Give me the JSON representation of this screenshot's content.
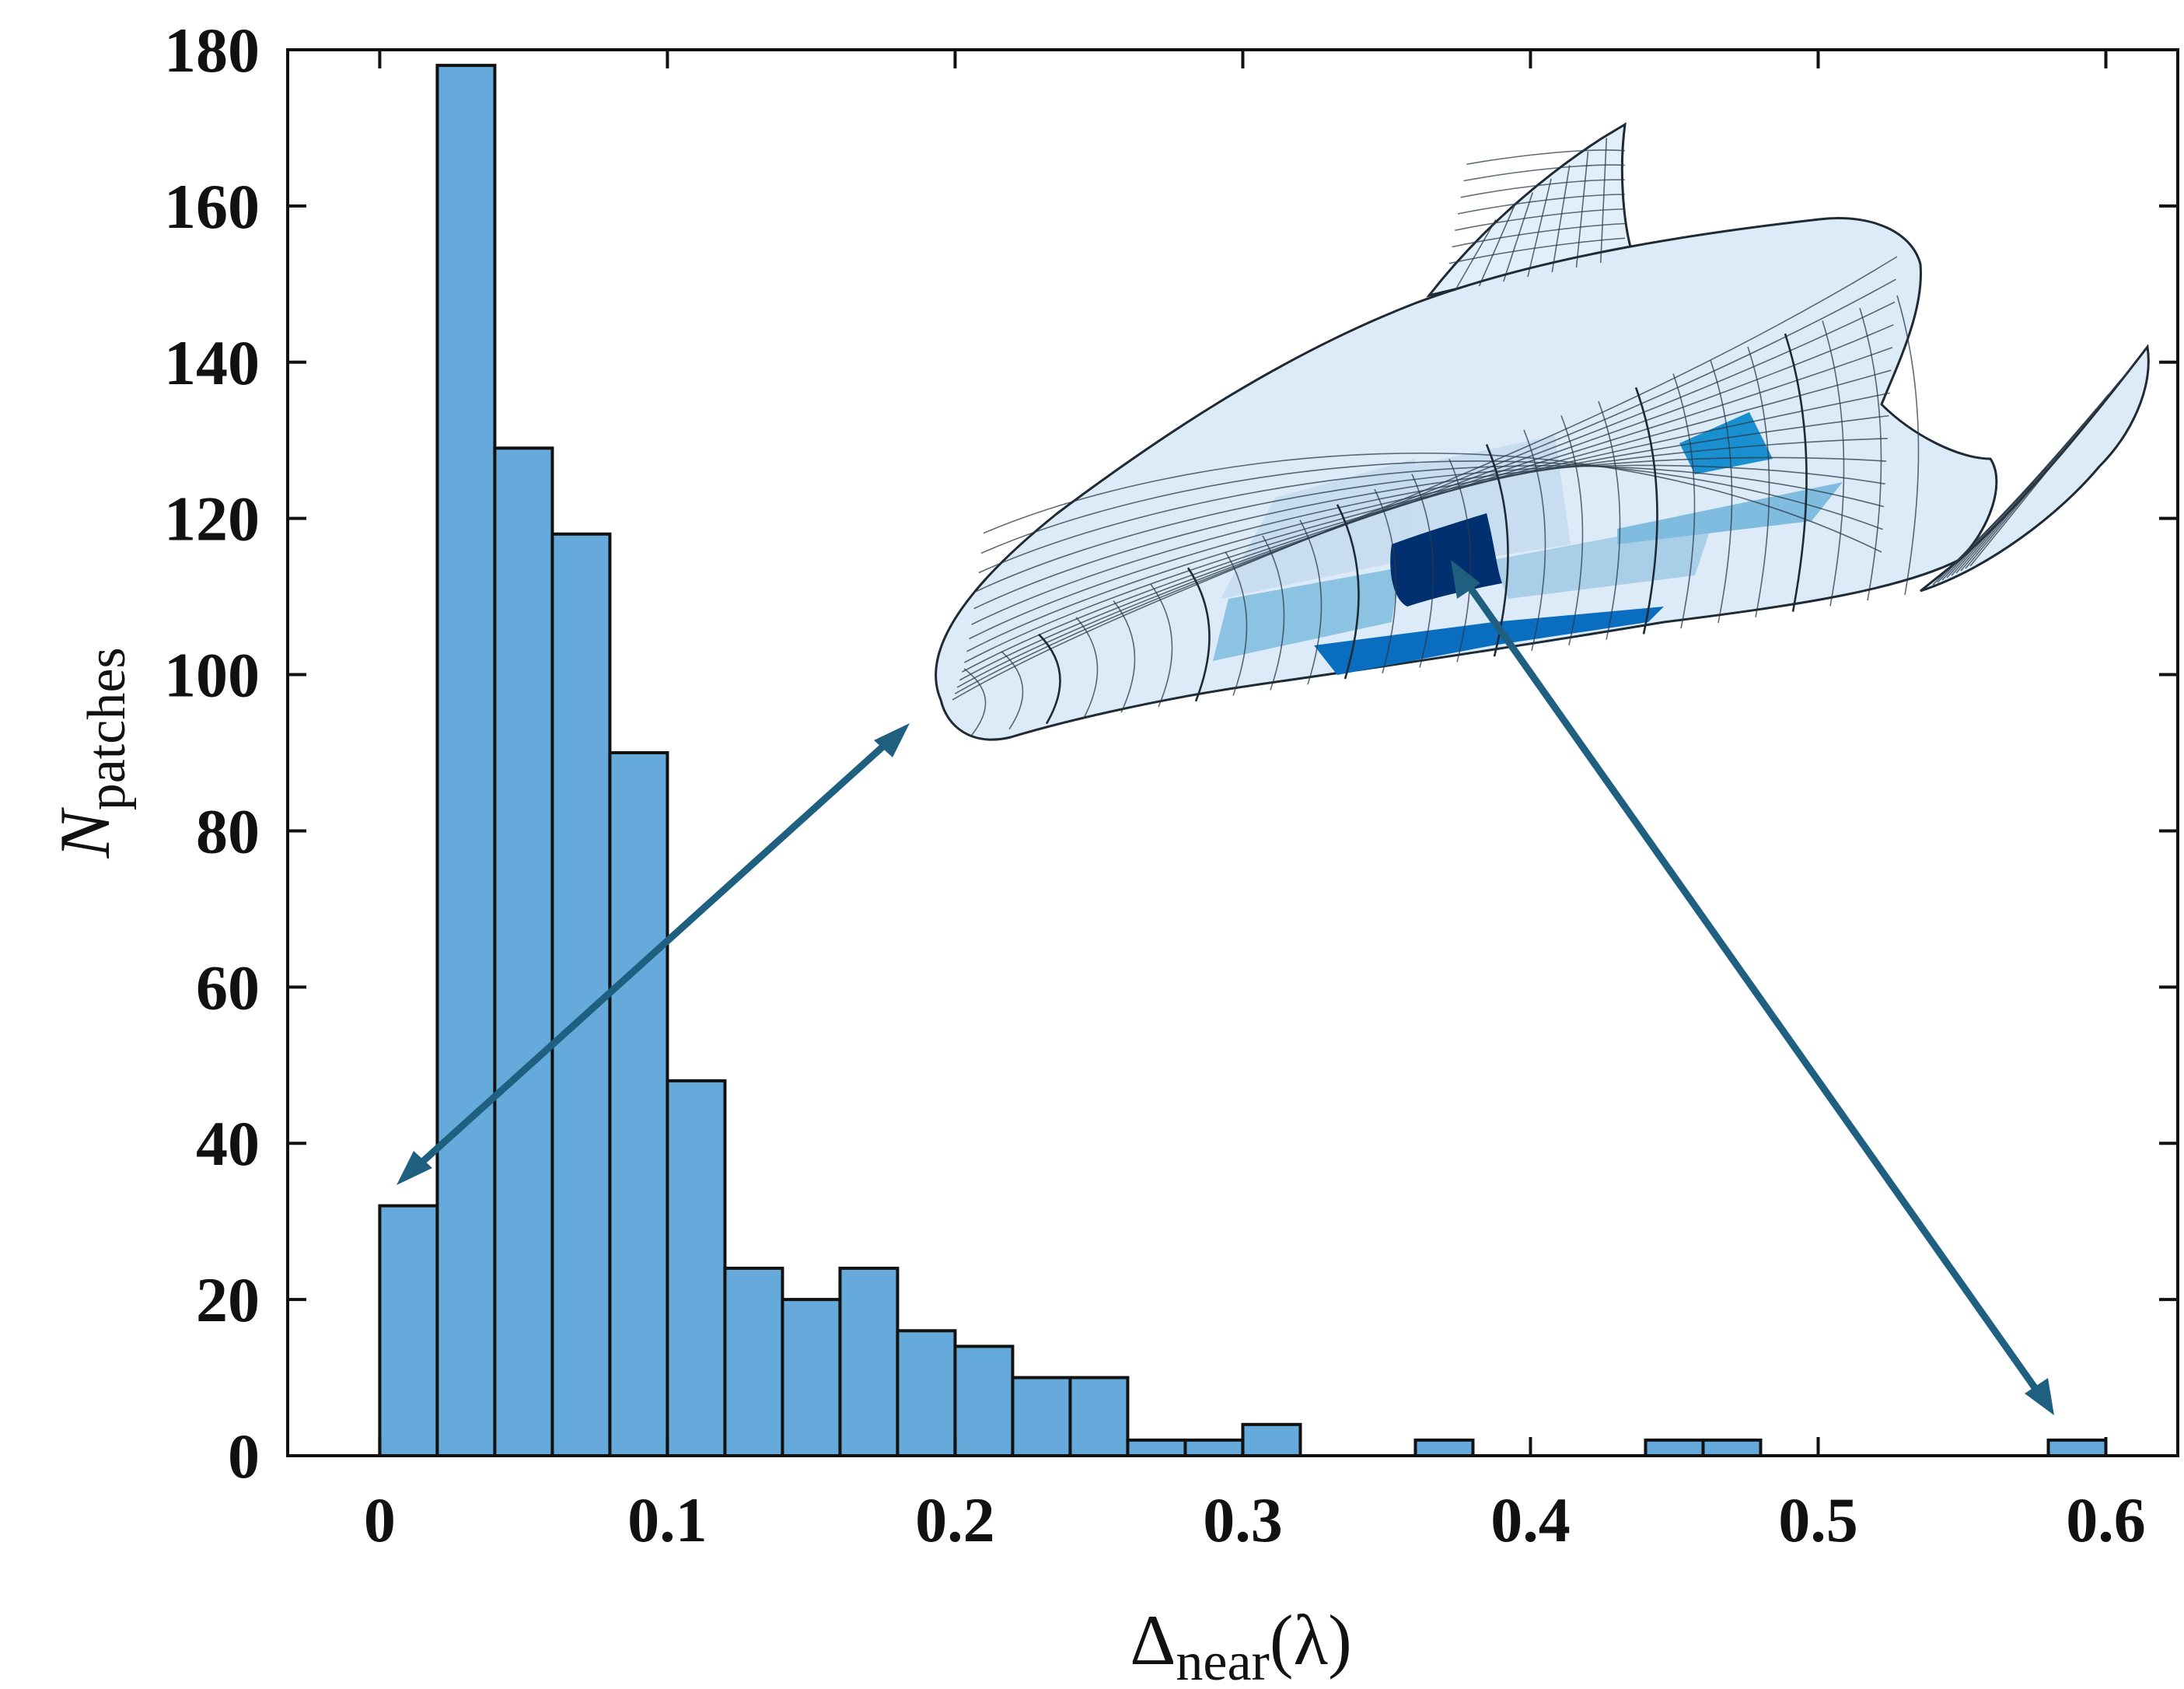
{
  "chart_data": {
    "type": "bar",
    "title": "",
    "xlabel": {
      "main": "Δ",
      "sub": "near",
      "suffix": "(λ)"
    },
    "ylabel": {
      "main": "N",
      "sub": "patches"
    },
    "xlim": [
      -0.032,
      0.625
    ],
    "ylim": [
      0,
      180
    ],
    "bin_width": 0.02,
    "xticks": [
      "0",
      "0.1",
      "0.2",
      "0.3",
      "0.4",
      "0.5",
      "0.6"
    ],
    "xtick_values": [
      0,
      0.1,
      0.2,
      0.3,
      0.4,
      0.5,
      0.6
    ],
    "yticks": [
      "0",
      "20",
      "40",
      "60",
      "80",
      "100",
      "120",
      "140",
      "160",
      "180"
    ],
    "ytick_values": [
      0,
      20,
      40,
      60,
      80,
      100,
      120,
      140,
      160,
      180
    ],
    "bins": [
      {
        "x0": 0.0,
        "x1": 0.02,
        "count": 32
      },
      {
        "x0": 0.02,
        "x1": 0.04,
        "count": 178
      },
      {
        "x0": 0.04,
        "x1": 0.06,
        "count": 129
      },
      {
        "x0": 0.06,
        "x1": 0.08,
        "count": 118
      },
      {
        "x0": 0.08,
        "x1": 0.1,
        "count": 90
      },
      {
        "x0": 0.1,
        "x1": 0.12,
        "count": 48
      },
      {
        "x0": 0.12,
        "x1": 0.14,
        "count": 24
      },
      {
        "x0": 0.14,
        "x1": 0.16,
        "count": 20
      },
      {
        "x0": 0.16,
        "x1": 0.18,
        "count": 24
      },
      {
        "x0": 0.18,
        "x1": 0.2,
        "count": 16
      },
      {
        "x0": 0.2,
        "x1": 0.22,
        "count": 14
      },
      {
        "x0": 0.22,
        "x1": 0.24,
        "count": 10
      },
      {
        "x0": 0.24,
        "x1": 0.26,
        "count": 10
      },
      {
        "x0": 0.26,
        "x1": 0.28,
        "count": 2
      },
      {
        "x0": 0.28,
        "x1": 0.3,
        "count": 2
      },
      {
        "x0": 0.3,
        "x1": 0.32,
        "count": 4
      },
      {
        "x0": 0.32,
        "x1": 0.34,
        "count": 0
      },
      {
        "x0": 0.34,
        "x1": 0.36,
        "count": 0
      },
      {
        "x0": 0.36,
        "x1": 0.38,
        "count": 2
      },
      {
        "x0": 0.38,
        "x1": 0.4,
        "count": 0
      },
      {
        "x0": 0.4,
        "x1": 0.42,
        "count": 0
      },
      {
        "x0": 0.42,
        "x1": 0.44,
        "count": 0
      },
      {
        "x0": 0.44,
        "x1": 0.46,
        "count": 2
      },
      {
        "x0": 0.46,
        "x1": 0.48,
        "count": 2
      },
      {
        "x0": 0.48,
        "x1": 0.5,
        "count": 0
      },
      {
        "x0": 0.5,
        "x1": 0.52,
        "count": 0
      },
      {
        "x0": 0.52,
        "x1": 0.54,
        "count": 0
      },
      {
        "x0": 0.54,
        "x1": 0.56,
        "count": 0
      },
      {
        "x0": 0.56,
        "x1": 0.58,
        "count": 0
      },
      {
        "x0": 0.58,
        "x1": 0.6,
        "count": 2
      }
    ],
    "annotations": [
      {
        "kind": "double-arrow",
        "from": "lowest bin (near 0)",
        "to": "inset aircraft nose region"
      },
      {
        "kind": "double-arrow",
        "from": "highest bin (near 0.6)",
        "to": "inset dark-blue patch"
      }
    ],
    "inset": {
      "description": "3D aircraft surface mesh colored by patch error",
      "colors": [
        "#dcebf7",
        "#c6dcef",
        "#a9cfe8",
        "#7fbcdf",
        "#1a8fd0",
        "#003070"
      ]
    }
  },
  "colors": {
    "bar": "#65aadb",
    "arrow": "#1f6080",
    "axis": "#111111"
  }
}
